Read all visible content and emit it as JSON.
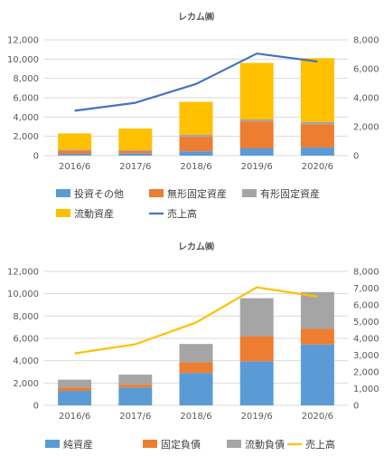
{
  "chart_data": [
    {
      "type": "bar",
      "stacked": true,
      "title": "レカム㈱",
      "categories": [
        "2016/6",
        "2017/6",
        "2018/6",
        "2019/6",
        "2020/6"
      ],
      "ylim": [
        0,
        12000
      ],
      "yticks": [
        "0",
        "2,000",
        "4,000",
        "6,000",
        "8,000",
        "10,000",
        "12,000"
      ],
      "y2lim": [
        0,
        8000
      ],
      "y2ticks": [
        "0",
        "2,000",
        "4,000",
        "6,000",
        "8,000"
      ],
      "legend_position": "bottom",
      "series": [
        {
          "name": "投資その他",
          "values": [
            180,
            220,
            450,
            750,
            850
          ],
          "color": "#5B9BD5"
        },
        {
          "name": "無形固定資産",
          "values": [
            350,
            280,
            1500,
            2800,
            2400
          ],
          "color": "#ED7D31"
        },
        {
          "name": "有形固定資産",
          "values": [
            100,
            100,
            220,
            200,
            250
          ],
          "color": "#A5A5A5"
        },
        {
          "name": "流動資産",
          "values": [
            1670,
            2200,
            3400,
            5850,
            6600
          ],
          "color": "#FFC000"
        }
      ],
      "line": {
        "name": "売上高",
        "values": [
          3100,
          3650,
          4950,
          7050,
          6500
        ],
        "color": "#4472C4",
        "axis": "secondary"
      },
      "legend_rows": [
        [
          "投資その他",
          "無形固定資産",
          "有形固定資産"
        ],
        [
          "流動資産",
          "売上高"
        ]
      ]
    },
    {
      "type": "bar",
      "stacked": true,
      "title": "レカム㈱",
      "categories": [
        "2016/6",
        "2017/6",
        "2018/6",
        "2019/6",
        "2020/6"
      ],
      "ylim": [
        0,
        12000
      ],
      "yticks": [
        "0",
        "2,000",
        "4,000",
        "6,000",
        "8,000",
        "10,000",
        "12,000"
      ],
      "y2lim": [
        0,
        8000
      ],
      "y2ticks": [
        "0",
        "1,000",
        "2,000",
        "3,000",
        "4,000",
        "5,000",
        "6,000",
        "7,000",
        "8,000"
      ],
      "legend_position": "bottom",
      "series": [
        {
          "name": "純資産",
          "values": [
            1300,
            1600,
            2900,
            3950,
            5450
          ],
          "color": "#5B9BD5"
        },
        {
          "name": "固定負債",
          "values": [
            300,
            250,
            950,
            2250,
            1400
          ],
          "color": "#ED7D31"
        },
        {
          "name": "流動負債",
          "values": [
            700,
            900,
            1650,
            3400,
            3300
          ],
          "color": "#A5A5A5"
        }
      ],
      "line": {
        "name": "売上高",
        "values": [
          3100,
          3650,
          4950,
          7050,
          6500
        ],
        "color": "#FFC000",
        "axis": "secondary"
      },
      "legend_rows": [
        [
          "純資産",
          "固定負債",
          "流動負債",
          "売上高"
        ]
      ]
    }
  ]
}
